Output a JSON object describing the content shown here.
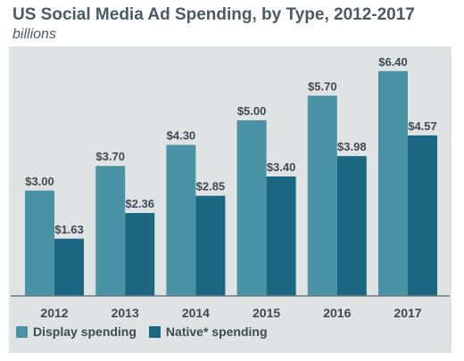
{
  "chart_data": {
    "type": "bar",
    "title": "US Social Media Ad Spending, by Type, 2012-2017",
    "subtitle": "billions",
    "categories": [
      "2012",
      "2013",
      "2014",
      "2015",
      "2016",
      "2017"
    ],
    "series": [
      {
        "name": "Display spending",
        "values": [
          3.0,
          3.7,
          4.3,
          5.0,
          5.7,
          6.4
        ],
        "labels": [
          "$3.00",
          "$3.70",
          "$4.30",
          "$5.00",
          "$5.70",
          "$6.40"
        ],
        "color": "#4a93a7"
      },
      {
        "name": "Native* spending",
        "values": [
          1.63,
          2.36,
          2.85,
          3.4,
          3.98,
          4.57
        ],
        "labels": [
          "$1.63",
          "$2.36",
          "$2.85",
          "$3.40",
          "$3.98",
          "$4.57"
        ],
        "color": "#1b6680"
      }
    ],
    "ylim": [
      0,
      6.8
    ],
    "grid": false,
    "legend_position": "bottom-left",
    "background": "#dfe3e4"
  }
}
